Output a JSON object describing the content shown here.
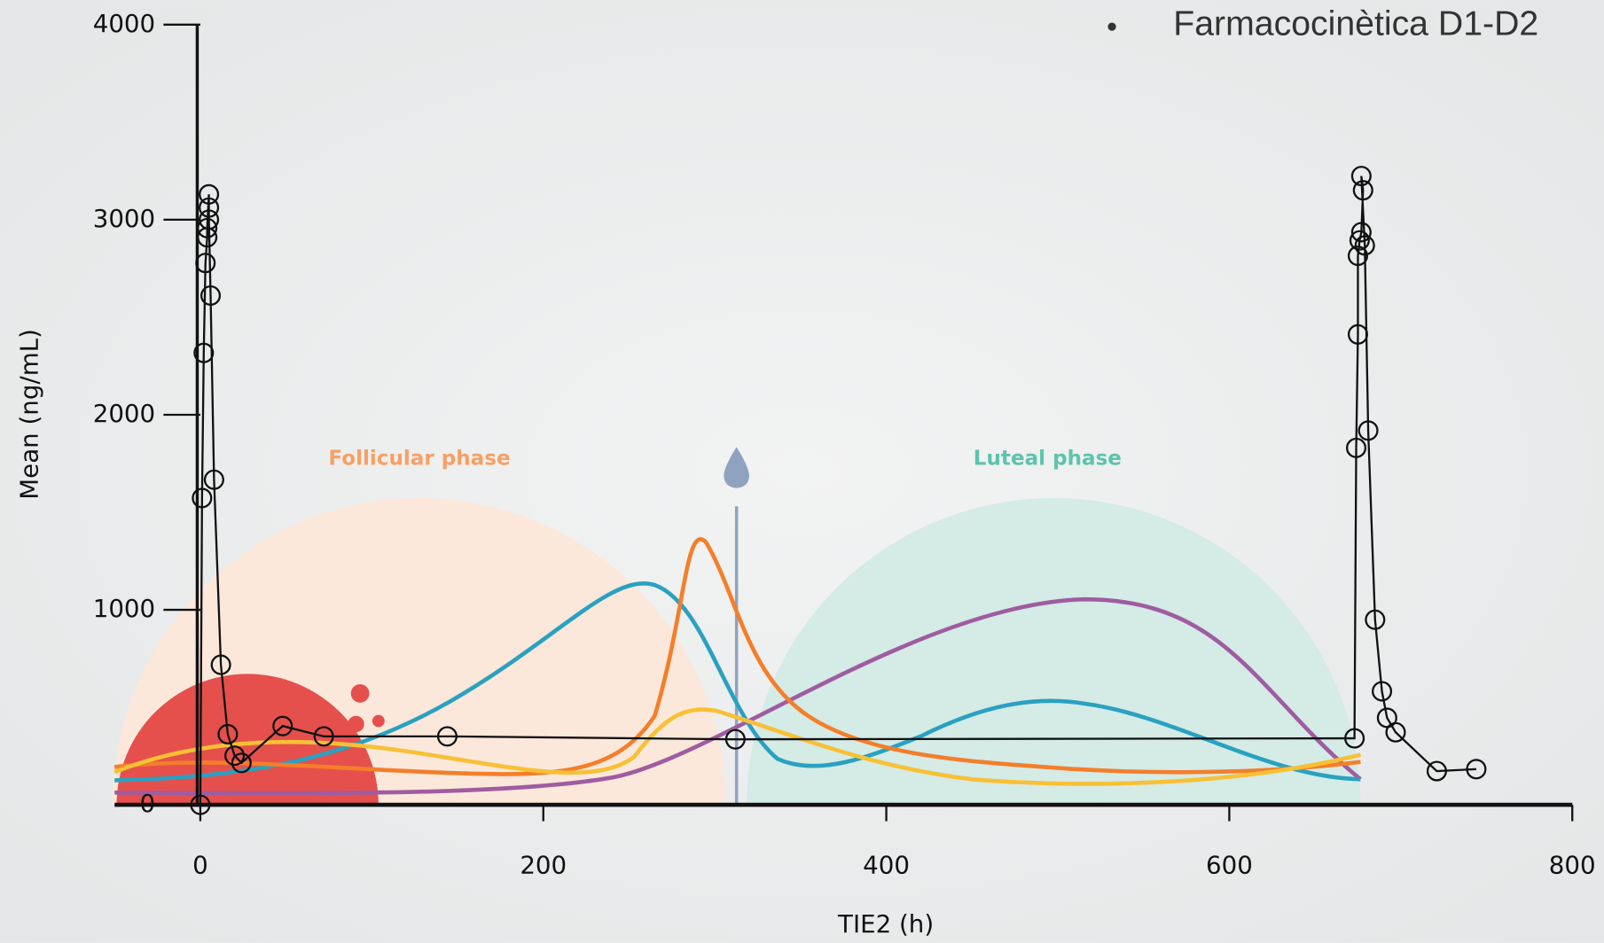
{
  "chart_data": {
    "type": "line",
    "title": "Farmacocinètica D1-D2",
    "x_label": "TIE2 (h)",
    "y_label": "Mean (ng/mL)",
    "annotations": [
      "Follicular phase",
      "Luteal phase"
    ],
    "x": [
      0,
      1,
      2,
      3,
      4,
      4,
      5,
      5,
      5,
      6,
      8,
      12,
      16,
      20,
      24,
      48,
      72,
      144,
      312,
      673,
      674,
      675,
      675,
      676,
      677,
      678,
      677,
      679,
      681,
      685,
      689,
      692,
      697,
      721,
      744
    ],
    "values": [
      0,
      1573,
      2317,
      2778,
      2910,
      2957,
      3130,
      3062,
      3000,
      2611,
      1667,
      718,
      362,
      252,
      215,
      404,
      351,
      351,
      336,
      341,
      1830,
      2412,
      2815,
      2894,
      2936,
      3151,
      3224,
      2868,
      1919,
      949,
      582,
      446,
      372,
      173,
      183
    ],
    "color": "#111111",
    "xlim": [
      -50,
      800
    ],
    "xticks": [
      0,
      200,
      400,
      600,
      800
    ],
    "ylim": [
      0,
      4000
    ],
    "yticks": [
      0,
      1000,
      2000,
      3000,
      4000
    ],
    "grid": false
  }
}
